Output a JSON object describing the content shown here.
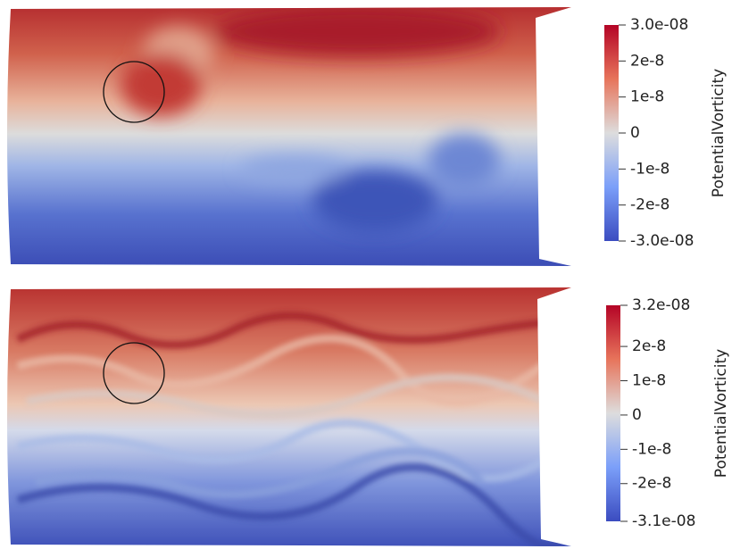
{
  "chart_data": [
    {
      "type": "heatmap",
      "colorbar_label": "PotentialVorticity",
      "clim": [
        -3e-08,
        3e-08
      ],
      "cticks": [
        {
          "value": 3e-08,
          "label": "3.0e-08"
        },
        2e-08,
        1e-08,
        0,
        -1e-08,
        -2e-08,
        {
          "value": -3e-08,
          "label": "-3.0e-08"
        }
      ]
    },
    {
      "type": "heatmap",
      "colorbar_label": "PotentialVorticity",
      "clim": [
        -3.1e-08,
        3.2e-08
      ],
      "cticks": [
        {
          "value": 3.2e-08,
          "label": "3.2e-08"
        },
        2e-08,
        1e-08,
        0,
        -1e-08,
        -2e-08,
        {
          "value": -3.1e-08,
          "label": "-3.1e-08"
        }
      ]
    }
  ]
}
